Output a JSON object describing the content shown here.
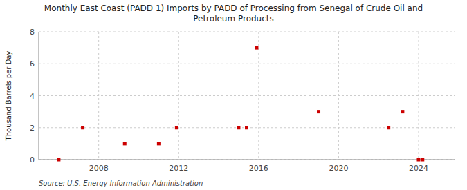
{
  "chart_data": {
    "type": "scatter",
    "title": "Monthly East Coast (PADD 1) Imports by PADD of Processing from Senegal of Crude Oil and\nPetroleum Products",
    "ylabel": "Thousand Barrels per Day",
    "source": "Source: U.S. Energy Information Administration",
    "x": [
      2006.0,
      2007.2,
      2009.3,
      2011.0,
      2011.9,
      2015.0,
      2015.4,
      2015.9,
      2019.0,
      2022.5,
      2023.2,
      2024.0,
      2024.2
    ],
    "values": [
      0,
      2,
      1,
      1,
      2,
      2,
      2,
      7,
      3,
      2,
      3,
      0,
      0
    ],
    "color": "#cc0000",
    "marker": "square",
    "xlim": [
      2005.0,
      2025.8
    ],
    "ylim": [
      0,
      8
    ],
    "xticks": [
      2008,
      2012,
      2016,
      2020,
      2024
    ],
    "yticks": [
      0,
      2,
      4,
      6,
      8
    ],
    "grid": true
  }
}
